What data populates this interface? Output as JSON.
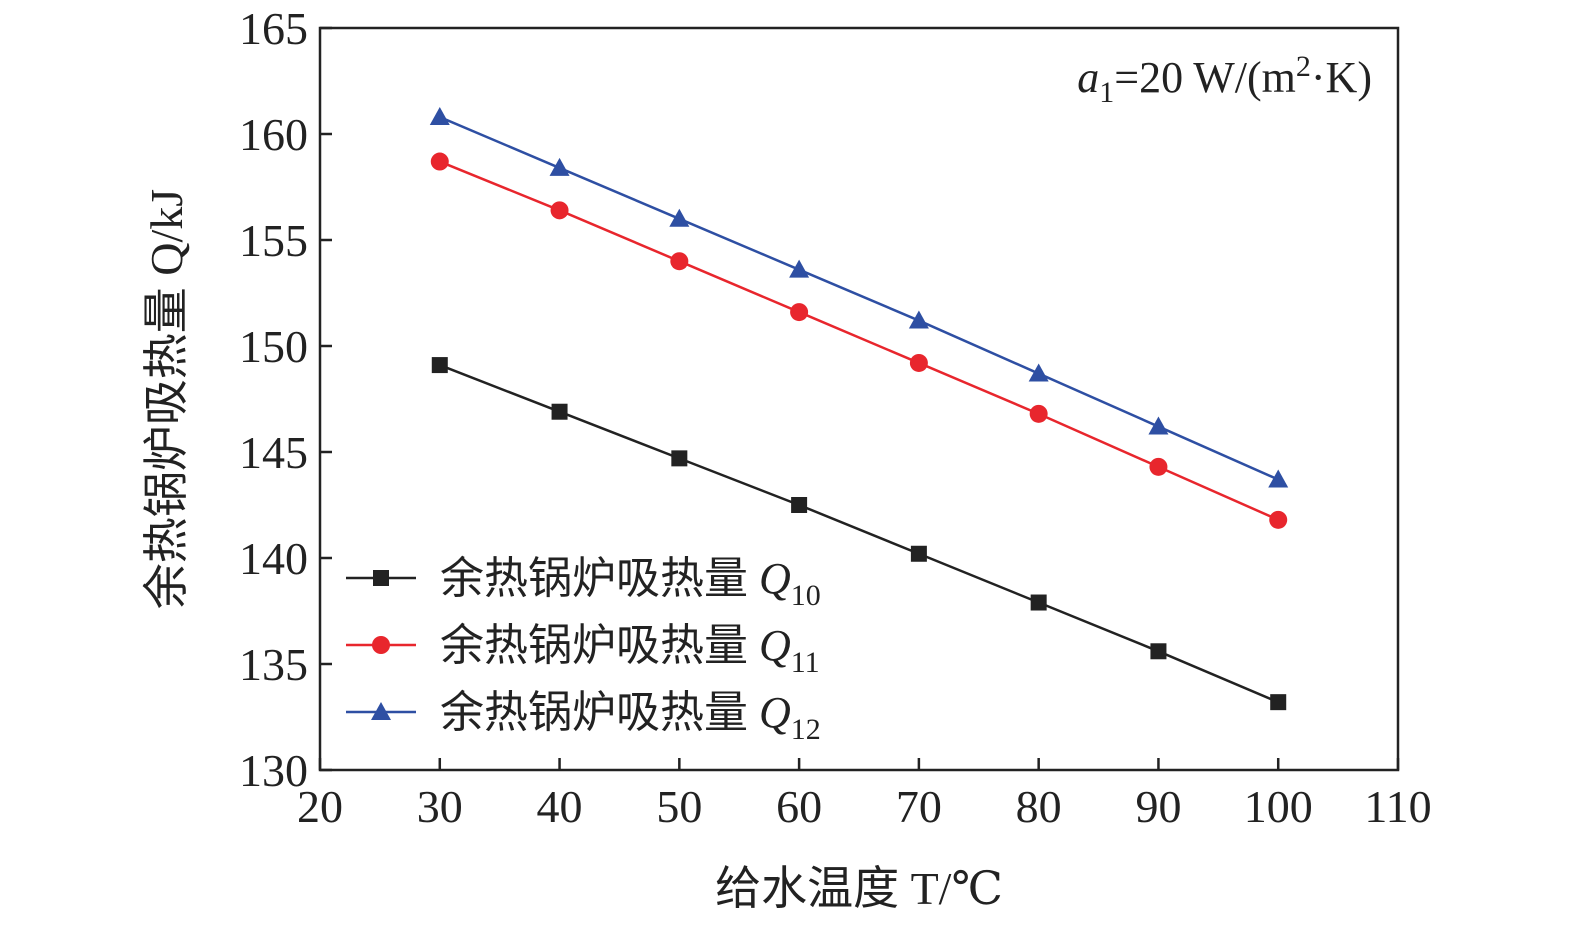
{
  "chart_data": {
    "type": "line",
    "xlabel": "给水温度 T/℃",
    "ylabel": "余热锅炉吸热量 Q/kJ",
    "xlim": [
      20,
      110
    ],
    "ylim": [
      130,
      165
    ],
    "xticks": [
      20,
      30,
      40,
      50,
      60,
      70,
      80,
      90,
      100,
      110
    ],
    "yticks": [
      130,
      135,
      140,
      145,
      150,
      155,
      160,
      165
    ],
    "grid": false,
    "legend_position": "lower-left",
    "annotation": {
      "var": "a",
      "sub": "1",
      "rest": "=20 W/(m",
      "sup": "2",
      "tail": "·K)"
    },
    "x": [
      30,
      40,
      50,
      60,
      70,
      80,
      90,
      100
    ],
    "series": [
      {
        "name": "余热锅炉吸热量 Q10",
        "label_cn": "余热锅炉吸热量 ",
        "label_var": "Q",
        "label_sub": "10",
        "color": "#222222",
        "marker": "square",
        "values": [
          149.1,
          146.9,
          144.7,
          142.5,
          140.2,
          137.9,
          135.6,
          133.2
        ]
      },
      {
        "name": "余热锅炉吸热量 Q11",
        "label_cn": "余热锅炉吸热量 ",
        "label_var": "Q",
        "label_sub": "11",
        "color": "#e8262d",
        "marker": "circle",
        "values": [
          158.7,
          156.4,
          154.0,
          151.6,
          149.2,
          146.8,
          144.3,
          141.8
        ]
      },
      {
        "name": "余热锅炉吸热量 Q12",
        "label_cn": "余热锅炉吸热量 ",
        "label_var": "Q",
        "label_sub": "12",
        "color": "#2e4fa3",
        "marker": "triangle",
        "values": [
          160.8,
          158.4,
          156.0,
          153.6,
          151.2,
          148.7,
          146.2,
          143.7
        ]
      }
    ]
  }
}
